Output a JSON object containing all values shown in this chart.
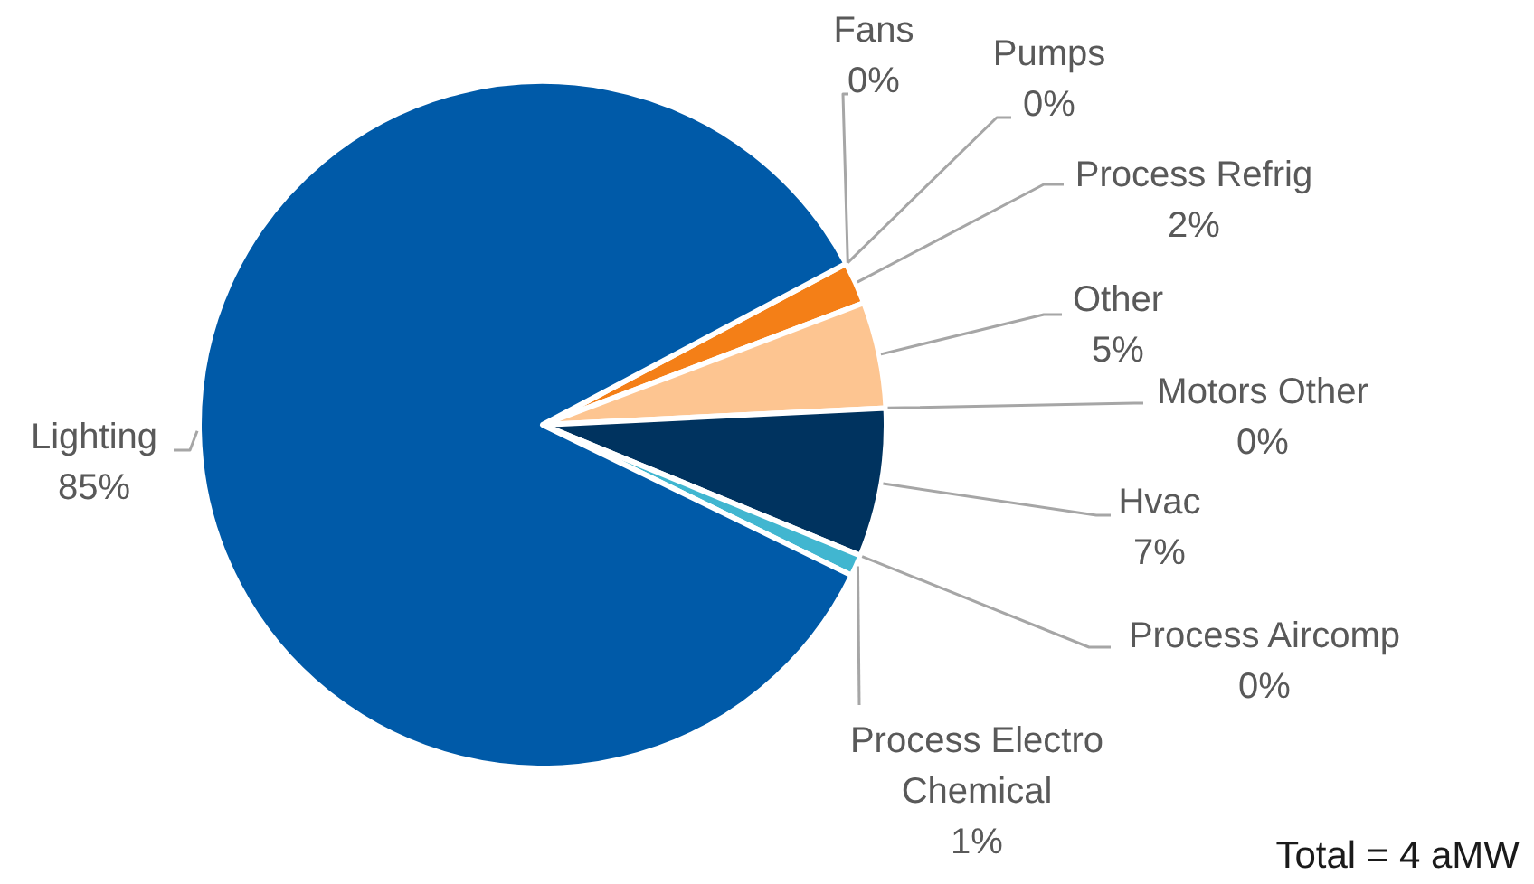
{
  "chart_data": {
    "type": "pie",
    "categories": [
      "Fans",
      "Pumps",
      "Process Refrig",
      "Other",
      "Motors Other",
      "Hvac",
      "Process Aircomp",
      "Process Electro Chemical",
      "Lighting"
    ],
    "values": [
      0,
      0,
      2,
      5,
      0,
      7,
      0,
      1,
      85
    ],
    "colors": [
      "#a5a5a5",
      "#ffc000",
      "#f47f17",
      "#fdc591",
      "#5b9bd5",
      "#00335f",
      "#70ad47",
      "#41b6d0",
      "#005aa8"
    ],
    "value_labels": [
      "0%",
      "0%",
      "2%",
      "5%",
      "0%",
      "7%",
      "0%",
      "1%",
      "85%"
    ],
    "annotations": [
      "Total = 4 aMW"
    ]
  }
}
